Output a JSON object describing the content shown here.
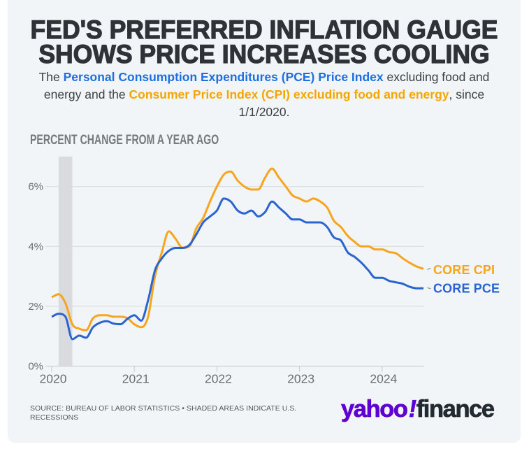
{
  "page": {
    "background": "#ffffff"
  },
  "card": {
    "background": "#f1f5f8"
  },
  "title": {
    "line1": "FED'S PREFERRED INFLATION GAUGE",
    "line2": "SHOWS PRICE INCREASES COOLING"
  },
  "subtitle": {
    "lines": [
      [
        {
          "text": "The ",
          "style": "normal"
        },
        {
          "text": "Personal Consumption Expenditures (PCE) Price Index",
          "style": "blue-bold"
        },
        {
          "text": " excluding food and",
          "style": "normal"
        }
      ],
      [
        {
          "text": "energy and the ",
          "style": "normal"
        },
        {
          "text": "Consumer Price Index (CPI) excluding food and energy",
          "style": "orange-bold"
        },
        {
          "text": ", since",
          "style": "normal"
        }
      ],
      [
        {
          "text": "1/1/2020.",
          "style": "normal"
        }
      ]
    ],
    "blue": "#1e6fe0",
    "orange": "#f5a400"
  },
  "chart_data": {
    "type": "line",
    "title": "PERCENT CHANGE FROM A YEAR AGO",
    "x_start": "2020-01",
    "x_end": "2024-07",
    "x_tick_labels": [
      "2020",
      "2021",
      "2022",
      "2023",
      "2024"
    ],
    "x_tick_month_index": [
      0,
      12,
      24,
      36,
      48
    ],
    "y_ticks": [
      0,
      2,
      4,
      6
    ],
    "y_tick_labels": [
      "0%",
      "2%",
      "4%",
      "6%"
    ],
    "ylim": [
      0,
      7
    ],
    "grid": "horizontal",
    "legend_position": "right-of-line-ends",
    "recession_band": {
      "from_month_index": 1,
      "to_month_index": 3
    },
    "band_color": "#d9dbde",
    "grid_color": "#d8dadb",
    "baseline_color": "#c6c8ca",
    "tick_label_color": "#6b6e72",
    "connector_color": "#9aa0a5",
    "series": [
      {
        "name": "CORE CPI",
        "color": "#F7A51D",
        "values": [
          2.3,
          2.4,
          2.1,
          1.4,
          1.25,
          1.2,
          1.6,
          1.7,
          1.7,
          1.65,
          1.65,
          1.6,
          1.4,
          1.3,
          1.65,
          3.0,
          3.8,
          4.5,
          4.25,
          3.95,
          4.0,
          4.6,
          4.95,
          5.5,
          6.0,
          6.4,
          6.5,
          6.2,
          6.0,
          5.9,
          5.9,
          6.3,
          6.6,
          6.3,
          6.0,
          5.7,
          5.6,
          5.5,
          5.6,
          5.5,
          5.3,
          4.85,
          4.65,
          4.35,
          4.15,
          4.0,
          4.0,
          3.9,
          3.9,
          3.81,
          3.77,
          3.6,
          3.45,
          3.33,
          3.25
        ]
      },
      {
        "name": "CORE PCE",
        "color": "#2A64D0",
        "values": [
          1.65,
          1.75,
          1.65,
          0.9,
          1.02,
          0.95,
          1.3,
          1.45,
          1.5,
          1.42,
          1.4,
          1.58,
          1.7,
          1.52,
          2.2,
          3.2,
          3.6,
          3.85,
          3.95,
          3.95,
          4.05,
          4.4,
          4.8,
          5.0,
          5.2,
          5.6,
          5.5,
          5.2,
          5.1,
          5.2,
          5.0,
          5.15,
          5.5,
          5.3,
          5.1,
          4.9,
          4.9,
          4.8,
          4.8,
          4.8,
          4.65,
          4.3,
          4.2,
          3.8,
          3.65,
          3.45,
          3.2,
          2.95,
          2.95,
          2.85,
          2.8,
          2.75,
          2.65,
          2.6,
          2.6
        ]
      }
    ]
  },
  "source_note": {
    "line1": "SOURCE: BUREAU OF LABOR STATISTICS • SHADED AREAS INDICATE U.S.",
    "line2": "RECESSIONS"
  },
  "logo": {
    "yahoo": "yahoo",
    "bang": "!",
    "finance": "finance",
    "purple": "#5F01D1",
    "dark": "#232A31"
  }
}
